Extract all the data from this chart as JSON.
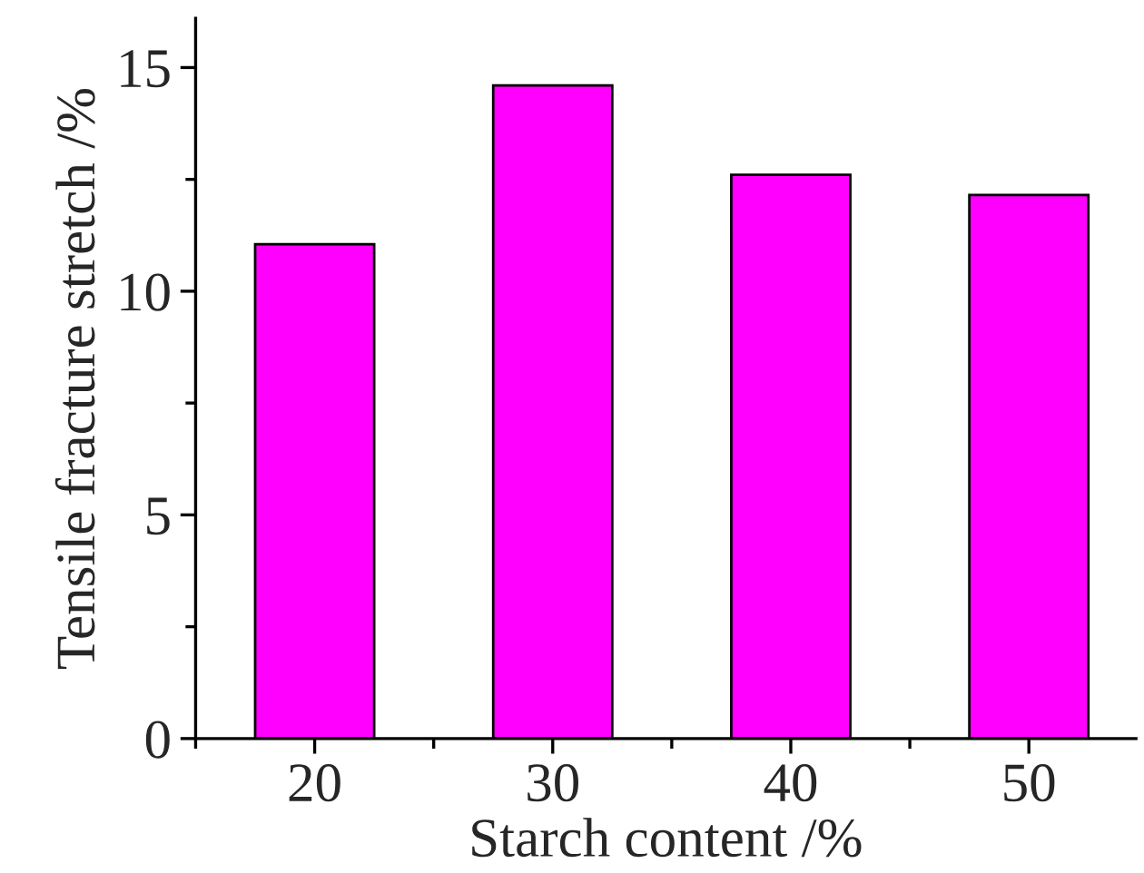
{
  "chart_data": {
    "type": "bar",
    "xlabel": "Starch content /%",
    "ylabel": "Tensile fracture stretch /%",
    "x": [
      20,
      30,
      40,
      50
    ],
    "values": [
      11.05,
      14.6,
      12.6,
      12.15
    ],
    "color": "#ff00ff",
    "xlim": [
      15,
      54.5
    ],
    "xticks": [
      20,
      30,
      40,
      50
    ],
    "ylim": [
      0,
      16.1
    ],
    "yticks": [
      0,
      5,
      10,
      15
    ],
    "grid": false,
    "legend": false
  }
}
